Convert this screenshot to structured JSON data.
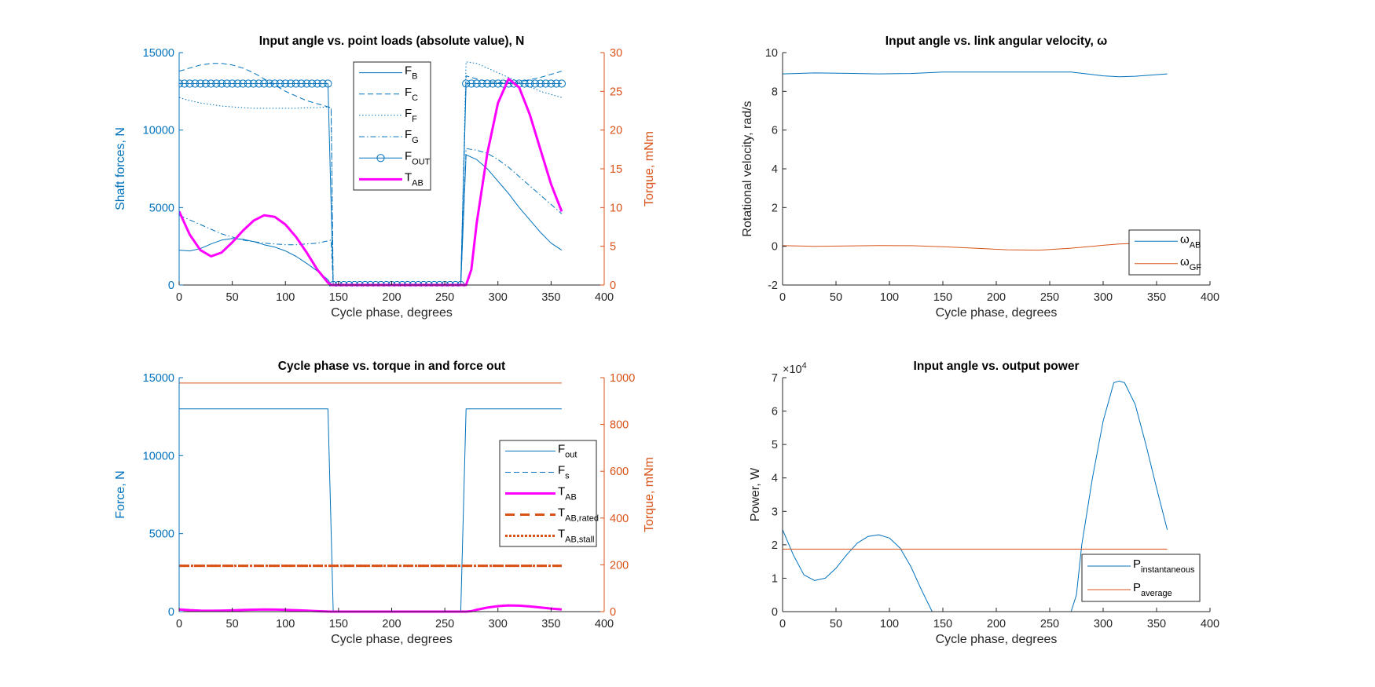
{
  "colors": {
    "blue": "#0072BD",
    "orange": "#D95319",
    "magenta": "#FF00FF",
    "axis": "#262626"
  },
  "chart_data": [
    {
      "type": "line",
      "title": "Input angle vs. point loads (absolute value), N",
      "xlabel": "Cycle phase, degrees",
      "ylabel": "Shaft forces, N",
      "ylabel_right": "Torque, mNm",
      "xlim": [
        0,
        400
      ],
      "xticks": [
        0,
        50,
        100,
        150,
        200,
        250,
        300,
        350,
        400
      ],
      "ylim": [
        0,
        15000
      ],
      "yticks": [
        0,
        5000,
        10000,
        15000
      ],
      "ylim_right": [
        0,
        30
      ],
      "yticks_right": [
        0,
        5,
        10,
        15,
        20,
        25,
        30
      ],
      "left_axis_color": "#0072BD",
      "right_axis_color": "#D95319",
      "grid": false,
      "legend_location": "top-center",
      "series": [
        {
          "name": "F",
          "sub": "B",
          "axis": "left",
          "color": "#0072BD",
          "style": "solid",
          "width": 1,
          "x": [
            0,
            10,
            20,
            30,
            40,
            50,
            60,
            70,
            80,
            90,
            100,
            110,
            120,
            130,
            140,
            143,
            145,
            265,
            270,
            280,
            290,
            300,
            310,
            320,
            330,
            340,
            350,
            360
          ],
          "y": [
            2250,
            2200,
            2350,
            2650,
            2900,
            3000,
            2950,
            2800,
            2600,
            2450,
            2200,
            1850,
            1400,
            900,
            350,
            0,
            0,
            0,
            8400,
            8100,
            7500,
            6700,
            5900,
            5000,
            4200,
            3400,
            2700,
            2250
          ]
        },
        {
          "name": "F",
          "sub": "C",
          "axis": "left",
          "color": "#0072BD",
          "style": "dashed",
          "width": 1,
          "x": [
            0,
            10,
            20,
            30,
            40,
            50,
            60,
            70,
            80,
            90,
            100,
            110,
            120,
            130,
            140,
            143,
            145,
            265,
            270,
            280,
            290,
            300,
            310,
            320,
            330,
            340,
            350,
            360
          ],
          "y": [
            13800,
            14000,
            14200,
            14300,
            14300,
            14200,
            14000,
            13700,
            13300,
            12900,
            12500,
            12200,
            11900,
            11700,
            11500,
            11400,
            0,
            0,
            13500,
            13300,
            13150,
            13050,
            13050,
            13100,
            13250,
            13400,
            13600,
            13800
          ]
        },
        {
          "name": "F",
          "sub": "F",
          "axis": "left",
          "color": "#0072BD",
          "style": "dotted",
          "width": 1,
          "x": [
            0,
            10,
            20,
            30,
            40,
            50,
            60,
            70,
            80,
            90,
            100,
            110,
            120,
            130,
            140,
            143,
            145,
            265,
            270,
            280,
            290,
            300,
            310,
            320,
            330,
            340,
            350,
            360
          ],
          "y": [
            12100,
            11900,
            11750,
            11650,
            11550,
            11500,
            11450,
            11400,
            11400,
            11400,
            11400,
            11400,
            11450,
            11450,
            11500,
            11450,
            0,
            0,
            14400,
            14300,
            14000,
            13700,
            13400,
            13100,
            12800,
            12500,
            12300,
            12100
          ]
        },
        {
          "name": "F",
          "sub": "G",
          "axis": "left",
          "color": "#0072BD",
          "style": "dashdot",
          "width": 1,
          "x": [
            0,
            10,
            20,
            30,
            40,
            50,
            60,
            70,
            80,
            90,
            100,
            110,
            120,
            130,
            140,
            143,
            145,
            265,
            270,
            280,
            290,
            300,
            310,
            320,
            330,
            340,
            350,
            360
          ],
          "y": [
            4500,
            4200,
            3900,
            3600,
            3300,
            3100,
            2900,
            2800,
            2700,
            2650,
            2600,
            2600,
            2650,
            2700,
            2850,
            2900,
            0,
            0,
            8800,
            8700,
            8500,
            8100,
            7600,
            7000,
            6400,
            5800,
            5200,
            4600
          ]
        },
        {
          "name": "F",
          "sub": "OUT",
          "axis": "left",
          "color": "#0072BD",
          "style": "solid",
          "width": 1,
          "marker": "circle",
          "x": [
            0,
            5,
            10,
            15,
            20,
            25,
            30,
            35,
            40,
            45,
            50,
            55,
            60,
            65,
            70,
            75,
            80,
            85,
            90,
            95,
            100,
            105,
            110,
            115,
            120,
            125,
            130,
            135,
            140,
            145,
            150,
            155,
            160,
            165,
            170,
            175,
            180,
            185,
            190,
            195,
            200,
            205,
            210,
            215,
            220,
            225,
            230,
            235,
            240,
            245,
            250,
            255,
            260,
            265,
            270,
            275,
            280,
            285,
            290,
            295,
            300,
            305,
            310,
            315,
            320,
            325,
            330,
            335,
            340,
            345,
            350,
            355,
            360
          ],
          "y": [
            13000,
            13000,
            13000,
            13000,
            13000,
            13000,
            13000,
            13000,
            13000,
            13000,
            13000,
            13000,
            13000,
            13000,
            13000,
            13000,
            13000,
            13000,
            13000,
            13000,
            13000,
            13000,
            13000,
            13000,
            13000,
            13000,
            13000,
            13000,
            13000,
            0,
            0,
            0,
            0,
            0,
            0,
            0,
            0,
            0,
            0,
            0,
            0,
            0,
            0,
            0,
            0,
            0,
            0,
            0,
            0,
            0,
            0,
            0,
            0,
            0,
            13000,
            13000,
            13000,
            13000,
            13000,
            13000,
            13000,
            13000,
            13000,
            13000,
            13000,
            13000,
            13000,
            13000,
            13000,
            13000,
            13000,
            13000,
            13000
          ]
        },
        {
          "name": "T",
          "sub": "AB",
          "axis": "right",
          "color": "#FF00FF",
          "style": "solid",
          "width": 3,
          "x": [
            0,
            10,
            20,
            30,
            40,
            50,
            60,
            70,
            80,
            90,
            100,
            110,
            120,
            130,
            140,
            143,
            145,
            265,
            270,
            275,
            280,
            290,
            300,
            310,
            320,
            330,
            340,
            350,
            360
          ],
          "y": [
            9.5,
            6.5,
            4.5,
            3.7,
            4.2,
            5.5,
            7,
            8.3,
            9,
            8.8,
            7.8,
            6.2,
            4.2,
            2,
            0.3,
            0,
            0,
            0,
            0,
            2,
            8,
            17,
            23.5,
            26.6,
            25.5,
            22,
            17.5,
            13,
            9.5
          ]
        }
      ]
    },
    {
      "type": "line",
      "title": "Input angle vs. link angular velocity, ω",
      "xlabel": "Cycle phase, degrees",
      "ylabel": "Rotational velocity, rad/s",
      "xlim": [
        0,
        400
      ],
      "xticks": [
        0,
        50,
        100,
        150,
        200,
        250,
        300,
        350,
        400
      ],
      "ylim": [
        -2,
        10
      ],
      "yticks": [
        -2,
        0,
        2,
        4,
        6,
        8,
        10
      ],
      "left_axis_color": "#262626",
      "grid": false,
      "legend_location": "bottom-right",
      "series": [
        {
          "name": "ω",
          "sub": "AB",
          "axis": "left",
          "color": "#0072BD",
          "style": "solid",
          "width": 1,
          "x": [
            0,
            30,
            60,
            90,
            120,
            150,
            180,
            210,
            240,
            270,
            300,
            315,
            330,
            360
          ],
          "y": [
            8.9,
            8.95,
            8.93,
            8.9,
            8.92,
            9.0,
            9.0,
            9.0,
            9.0,
            9.0,
            8.8,
            8.75,
            8.78,
            8.9
          ]
        },
        {
          "name": "ω",
          "sub": "GF",
          "axis": "left",
          "color": "#D95319",
          "style": "solid",
          "width": 1,
          "x": [
            0,
            30,
            60,
            90,
            120,
            150,
            180,
            210,
            240,
            270,
            300,
            315,
            330,
            360
          ],
          "y": [
            0.03,
            0.0,
            0.02,
            0.04,
            0.03,
            -0.02,
            -0.1,
            -0.18,
            -0.2,
            -0.1,
            0.05,
            0.12,
            0.15,
            0.12
          ]
        }
      ]
    },
    {
      "type": "line",
      "title": "Cycle phase vs. torque in and force out",
      "xlabel": "Cycle phase, degrees",
      "ylabel": "Force, N",
      "ylabel_right": "Torque, mNm",
      "xlim": [
        0,
        400
      ],
      "xticks": [
        0,
        50,
        100,
        150,
        200,
        250,
        300,
        350,
        400
      ],
      "ylim": [
        0,
        15000
      ],
      "yticks": [
        0,
        5000,
        10000,
        15000
      ],
      "ylim_right": [
        0,
        1000
      ],
      "yticks_right": [
        0,
        200,
        400,
        600,
        800,
        1000
      ],
      "left_axis_color": "#0072BD",
      "right_axis_color": "#D95319",
      "grid": false,
      "legend_location": "right",
      "series": [
        {
          "name": "F",
          "sub": "out",
          "axis": "left",
          "color": "#0072BD",
          "style": "solid",
          "width": 1,
          "x": [
            0,
            140,
            145,
            265,
            270,
            360
          ],
          "y": [
            13000,
            13000,
            0,
            0,
            13000,
            13000
          ]
        },
        {
          "name": "F",
          "sub": "s",
          "axis": "left",
          "color": "#0072BD",
          "style": "dashed",
          "width": 1,
          "x": [],
          "y": []
        },
        {
          "name": "T",
          "sub": "AB",
          "axis": "right",
          "color": "#FF00FF",
          "style": "solid",
          "width": 3,
          "x": [
            0,
            10,
            20,
            30,
            40,
            50,
            60,
            70,
            80,
            90,
            100,
            110,
            120,
            130,
            140,
            143,
            145,
            265,
            270,
            275,
            280,
            290,
            300,
            310,
            320,
            330,
            340,
            350,
            360
          ],
          "y": [
            9.5,
            6.5,
            4.5,
            3.7,
            4.2,
            5.5,
            7,
            8.3,
            9,
            8.8,
            7.8,
            6.2,
            4.2,
            2,
            0.3,
            0,
            0,
            0,
            0,
            2,
            8,
            17,
            23.5,
            26.6,
            25.5,
            22,
            17.5,
            13,
            9.5
          ]
        },
        {
          "name": "T",
          "sub": "AB,rated",
          "axis": "right",
          "color": "#D95319",
          "style": "dashed-thick",
          "width": 3,
          "x": [
            0,
            360
          ],
          "y": [
            196,
            196
          ]
        },
        {
          "name": "T",
          "sub": "AB,stall",
          "axis": "right",
          "color": "#D95319",
          "style": "dotted-thick",
          "width": 3,
          "x": [
            0,
            360
          ],
          "y": [
            196,
            196
          ]
        },
        {
          "axis": "right",
          "color": "#D95319",
          "style": "solid",
          "width": 1,
          "x": [
            0,
            360
          ],
          "y": [
            977,
            977
          ]
        }
      ]
    },
    {
      "type": "line",
      "title": "Input angle vs. output power",
      "xlabel": "Cycle phase, degrees",
      "ylabel": "Power, W",
      "exponent_base": "×10",
      "exponent_power": "4",
      "xlim": [
        0,
        400
      ],
      "xticks": [
        0,
        50,
        100,
        150,
        200,
        250,
        300,
        350,
        400
      ],
      "ylim": [
        0,
        70000
      ],
      "yticks": [
        0,
        10000,
        20000,
        30000,
        40000,
        50000,
        60000,
        70000
      ],
      "ytick_labels": [
        "0",
        "1",
        "2",
        "3",
        "4",
        "5",
        "6",
        "7"
      ],
      "left_axis_color": "#262626",
      "grid": false,
      "legend_location": "bottom-right",
      "series": [
        {
          "name": "P",
          "sub": "instantaneous",
          "axis": "left",
          "color": "#0072BD",
          "style": "solid",
          "width": 1,
          "x": [
            0,
            10,
            20,
            30,
            40,
            50,
            60,
            70,
            80,
            90,
            100,
            110,
            120,
            130,
            140,
            145,
            265,
            270,
            275,
            280,
            290,
            300,
            310,
            315,
            320,
            330,
            340,
            350,
            360
          ],
          "y": [
            24500,
            17000,
            11000,
            9300,
            10000,
            13000,
            17000,
            20500,
            22500,
            23000,
            22000,
            19000,
            13500,
            6500,
            0,
            0,
            0,
            0,
            5000,
            20000,
            40000,
            57000,
            68500,
            69000,
            68500,
            62000,
            50000,
            37000,
            24500
          ]
        },
        {
          "name": "P",
          "sub": "average",
          "axis": "left",
          "color": "#D95319",
          "style": "solid",
          "width": 1,
          "x": [
            0,
            360
          ],
          "y": [
            18700,
            18700
          ]
        }
      ]
    }
  ]
}
